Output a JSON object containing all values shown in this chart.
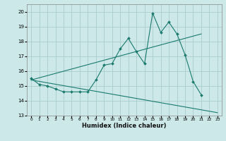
{
  "title": "",
  "xlabel": "Humidex (Indice chaleur)",
  "bg_color": "#cce8e8",
  "line_color": "#1a7a6e",
  "grid_color": "#aacccc",
  "xlim": [
    -0.5,
    23.5
  ],
  "ylim": [
    13,
    20.5
  ],
  "yticks": [
    13,
    14,
    15,
    16,
    17,
    18,
    19,
    20
  ],
  "xticks": [
    0,
    1,
    2,
    3,
    4,
    5,
    6,
    7,
    8,
    9,
    10,
    11,
    12,
    13,
    14,
    15,
    16,
    17,
    18,
    19,
    20,
    21,
    22,
    23
  ],
  "line1_x": [
    0,
    1,
    2,
    3,
    4,
    5,
    6,
    7,
    8,
    9,
    10,
    11,
    12,
    13,
    14,
    15,
    16,
    17,
    18,
    19,
    20,
    21
  ],
  "line1_y": [
    15.5,
    15.1,
    15.0,
    14.8,
    14.6,
    14.6,
    14.6,
    14.6,
    15.4,
    16.4,
    16.5,
    17.5,
    18.2,
    17.3,
    16.5,
    19.9,
    18.6,
    19.3,
    18.5,
    17.1,
    15.3,
    14.4
  ],
  "line2_x": [
    0,
    21
  ],
  "line2_y": [
    15.4,
    18.5
  ],
  "line3_x": [
    0,
    23
  ],
  "line3_y": [
    15.4,
    13.2
  ]
}
